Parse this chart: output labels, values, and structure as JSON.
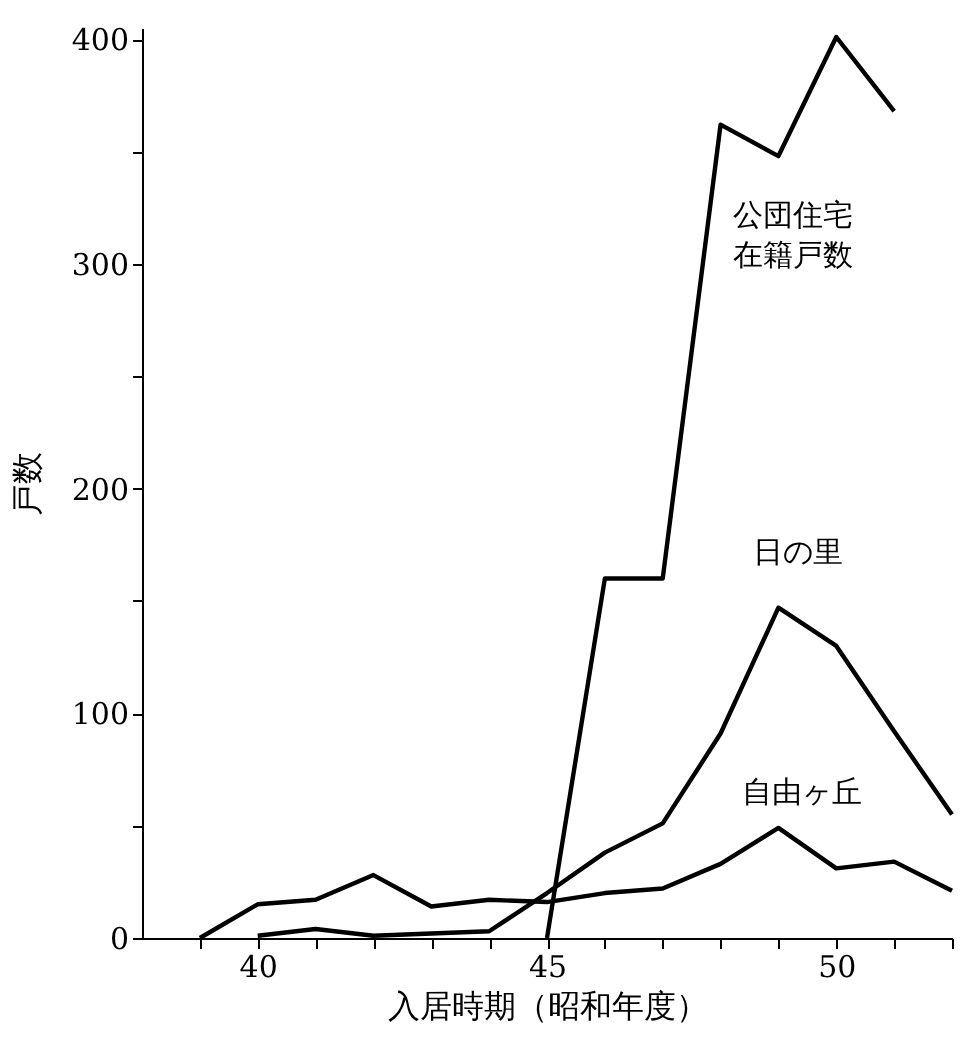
{
  "chart_data": {
    "type": "line",
    "xlabel": "入居時期（昭和年度）",
    "ylabel": "戸数",
    "xlim": [
      38,
      52
    ],
    "ylim": [
      0,
      405
    ],
    "xticks": [
      {
        "value": 39,
        "label": null
      },
      40,
      {
        "value": 41,
        "label": null
      },
      {
        "value": 42,
        "label": null
      },
      {
        "value": 43,
        "label": null
      },
      {
        "value": 44,
        "label": null
      },
      45,
      {
        "value": 46,
        "label": null
      },
      {
        "value": 47,
        "label": null
      },
      {
        "value": 48,
        "label": null
      },
      {
        "value": 49,
        "label": null
      },
      50,
      {
        "value": 51,
        "label": null
      },
      {
        "value": 52,
        "label": null
      }
    ],
    "yticks": [
      0,
      {
        "value": 50,
        "label": null
      },
      100,
      {
        "value": 150,
        "label": null
      },
      200,
      {
        "value": 250,
        "label": null
      },
      300,
      {
        "value": 350,
        "label": null
      },
      400
    ],
    "grid": false,
    "legend": false,
    "marker": "none",
    "line_style": "solid",
    "series": [
      {
        "name": "公団住宅在籍戸数",
        "color": "#000000",
        "x": [
          45,
          46,
          47,
          48,
          49,
          50,
          51
        ],
        "values": [
          0,
          160,
          160,
          362,
          348,
          401,
          368
        ]
      },
      {
        "name": "日の里",
        "color": "#000000",
        "x": [
          40,
          41,
          42,
          43,
          44,
          45,
          46,
          47,
          48,
          49,
          50,
          51,
          52
        ],
        "values": [
          1,
          4,
          1,
          2,
          3,
          20,
          38,
          51,
          91,
          147,
          130,
          92,
          55
        ]
      },
      {
        "name": "自由ヶ丘",
        "color": "#000000",
        "x": [
          39,
          40,
          41,
          42,
          43,
          44,
          45,
          46,
          47,
          48,
          49,
          50,
          51,
          52
        ],
        "values": [
          0,
          15,
          17,
          28,
          14,
          17,
          16,
          20,
          22,
          33,
          49,
          31,
          34,
          21
        ]
      }
    ]
  }
}
